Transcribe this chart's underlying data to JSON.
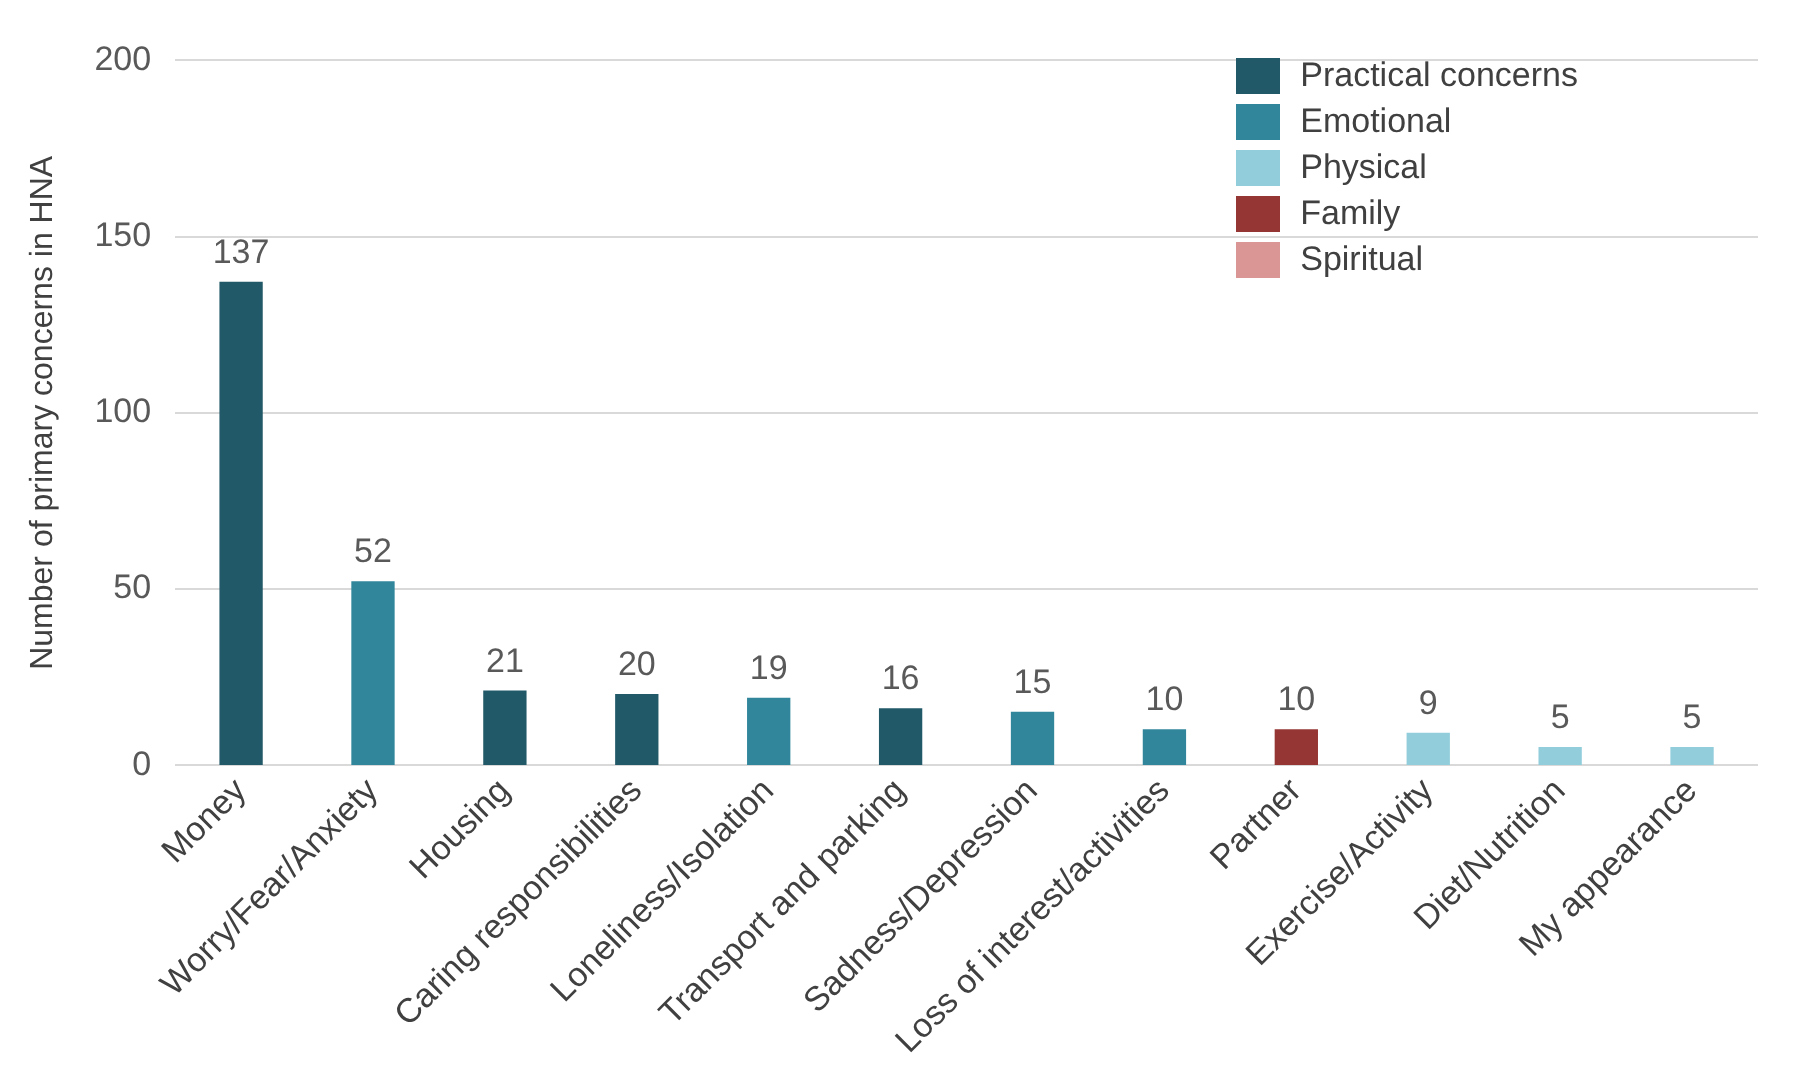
{
  "chart_data": {
    "type": "bar",
    "ylabel": "Number of primary concerns in HNA",
    "categories": [
      "Money",
      "Worry/Fear/Anxiety",
      "Housing",
      "Caring responsibilities",
      "Loneliness/Isolation",
      "Transport and parking",
      "Sadness/Depression",
      "Loss of interest/activities",
      "Partner",
      "Exercise/Activity",
      "Diet/Nutrition",
      "My appearance"
    ],
    "series": [
      {
        "name": "Practical concerns",
        "color": "#215968",
        "values": [
          137,
          null,
          21,
          20,
          null,
          16,
          null,
          null,
          null,
          null,
          null,
          null
        ]
      },
      {
        "name": "Emotional",
        "color": "#31869b",
        "values": [
          null,
          52,
          null,
          null,
          19,
          null,
          15,
          10,
          null,
          null,
          null,
          null
        ]
      },
      {
        "name": "Physical",
        "color": "#92cddc",
        "values": [
          null,
          null,
          null,
          null,
          null,
          null,
          null,
          null,
          null,
          9,
          5,
          5
        ]
      },
      {
        "name": "Family",
        "color": "#963634",
        "values": [
          null,
          null,
          null,
          null,
          null,
          null,
          null,
          null,
          10,
          null,
          null,
          null
        ]
      },
      {
        "name": "Spiritual",
        "color": "#da9694",
        "values": [
          null,
          null,
          null,
          null,
          null,
          null,
          null,
          null,
          null,
          null,
          null,
          null
        ]
      }
    ],
    "ylim": [
      0,
      200
    ],
    "yticks": [
      0,
      50,
      100,
      150,
      200
    ],
    "grid": "y",
    "legend": "top right",
    "data_labels": true
  }
}
